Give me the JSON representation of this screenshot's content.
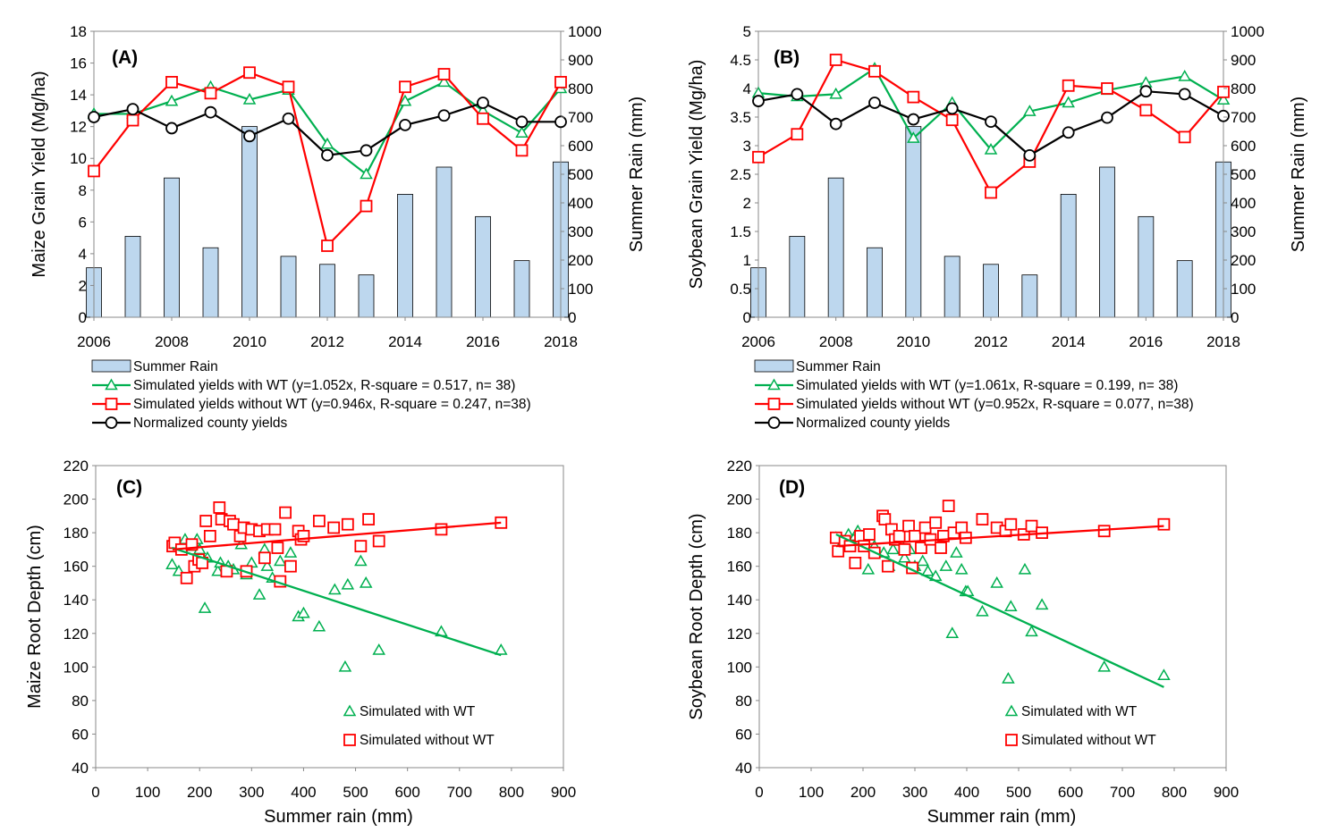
{
  "chart_data": [
    {
      "type": "bar+line",
      "panel_label": "(A)",
      "x_ticks": [
        "2006",
        "2008",
        "2010",
        "2012",
        "2014",
        "2016",
        "2018"
      ],
      "ylabel": "Maize Grain Yield (Mg/ha)",
      "y2label": "Summer Rain (mm)",
      "ylim": [
        0,
        18
      ],
      "y_ticks": [
        0,
        2,
        4,
        6,
        8,
        10,
        12,
        14,
        16,
        18
      ],
      "y2lim": [
        0,
        1000
      ],
      "y2_ticks": [
        0,
        100,
        200,
        300,
        400,
        500,
        600,
        700,
        800,
        900,
        1000
      ],
      "x": [
        2006,
        2007,
        2008,
        2009,
        2010,
        2011,
        2012,
        2013,
        2014,
        2015,
        2016,
        2017,
        2018
      ],
      "bars": {
        "name": "Summer Rain",
        "axis": "y2",
        "color": "#BDD7EE",
        "values": [
          173,
          283,
          487,
          243,
          667,
          213,
          185,
          148,
          430,
          525,
          352,
          198,
          543
        ]
      },
      "series": [
        {
          "name": "Simulated yields with WT (y=1.052x, R-square = 0.517, n= 38)",
          "color": "#00B050",
          "marker": "triangle",
          "values": [
            12.8,
            12.8,
            13.6,
            14.5,
            13.7,
            14.3,
            10.9,
            9.0,
            13.6,
            14.8,
            13.0,
            11.6,
            14.4
          ]
        },
        {
          "name": "Simulated yields without WT (y=0.946x, R-square = 0.247, n=38)",
          "color": "#FF0000",
          "marker": "square",
          "values": [
            9.2,
            12.4,
            14.8,
            14.1,
            15.4,
            14.5,
            4.5,
            7.0,
            14.5,
            15.3,
            12.5,
            10.5,
            14.8
          ]
        },
        {
          "name": "Normalized county yields",
          "color": "#000000",
          "marker": "circle",
          "values": [
            12.6,
            13.1,
            11.9,
            12.9,
            11.4,
            12.5,
            10.2,
            10.5,
            12.1,
            12.7,
            13.5,
            12.3,
            12.3
          ]
        }
      ],
      "legend": "bottom"
    },
    {
      "type": "bar+line",
      "panel_label": "(B)",
      "x_ticks": [
        "2006",
        "2008",
        "2010",
        "2012",
        "2014",
        "2016",
        "2018"
      ],
      "ylabel": "Soybean Grain Yield (Mg/ha)",
      "y2label": "Summer Rain (mm)",
      "ylim": [
        0,
        5
      ],
      "y_ticks": [
        "0",
        "0.5",
        "1",
        "1.5",
        "2",
        "2.5",
        "3",
        "3.5",
        "4",
        "4.5",
        "5"
      ],
      "y2lim": [
        0,
        1000
      ],
      "y2_ticks": [
        0,
        100,
        200,
        300,
        400,
        500,
        600,
        700,
        800,
        900,
        1000
      ],
      "x": [
        2006,
        2007,
        2008,
        2009,
        2010,
        2011,
        2012,
        2013,
        2014,
        2015,
        2016,
        2017,
        2018
      ],
      "bars": {
        "name": "Summer Rain",
        "axis": "y2",
        "color": "#BDD7EE",
        "values": [
          173,
          283,
          487,
          243,
          667,
          213,
          185,
          148,
          430,
          525,
          352,
          198,
          543
        ]
      },
      "series": [
        {
          "name": "Simulated yields with WT (y=1.061x, R-square = 0.199, n= 38)",
          "color": "#00B050",
          "marker": "triangle",
          "values": [
            3.92,
            3.86,
            3.9,
            4.35,
            3.13,
            3.75,
            2.93,
            3.6,
            3.75,
            3.97,
            4.1,
            4.21,
            3.8
          ]
        },
        {
          "name": "Simulated yields without WT (y=0.952x, R-square = 0.077, n=38)",
          "color": "#FF0000",
          "marker": "square",
          "values": [
            2.8,
            3.2,
            4.5,
            4.3,
            3.85,
            3.45,
            2.18,
            2.72,
            4.05,
            4.0,
            3.62,
            3.15,
            3.94
          ]
        },
        {
          "name": "Normalized county yields",
          "color": "#000000",
          "marker": "circle",
          "values": [
            3.78,
            3.9,
            3.38,
            3.75,
            3.46,
            3.65,
            3.42,
            2.83,
            3.23,
            3.49,
            3.95,
            3.9,
            3.52
          ]
        }
      ],
      "legend": "bottom"
    },
    {
      "type": "scatter",
      "panel_label": "(C)",
      "xlabel": "Summer rain (mm)",
      "ylabel": "Maize Root Depth (cm)",
      "xlim": [
        0,
        900
      ],
      "x_ticks": [
        0,
        100,
        200,
        300,
        400,
        500,
        600,
        700,
        800,
        900
      ],
      "ylim": [
        40,
        220
      ],
      "y_ticks": [
        40,
        60,
        80,
        100,
        120,
        140,
        160,
        180,
        200,
        220
      ],
      "series": [
        {
          "name": "Simulated  with WT",
          "color": "#00B050",
          "marker": "triangle",
          "points": [
            [
              147,
              161
            ],
            [
              160,
              157
            ],
            [
              172,
              176
            ],
            [
              185,
              172
            ],
            [
              195,
              176
            ],
            [
              200,
              170
            ],
            [
              210,
              135
            ],
            [
              215,
              165
            ],
            [
              235,
              157
            ],
            [
              240,
              162
            ],
            [
              255,
              160
            ],
            [
              265,
              158
            ],
            [
              280,
              173
            ],
            [
              290,
              155
            ],
            [
              300,
              162
            ],
            [
              315,
              143
            ],
            [
              325,
              170
            ],
            [
              330,
              160
            ],
            [
              340,
              153
            ],
            [
              355,
              163
            ],
            [
              375,
              168
            ],
            [
              390,
              130
            ],
            [
              400,
              132
            ],
            [
              430,
              124
            ],
            [
              460,
              146
            ],
            [
              480,
              100
            ],
            [
              485,
              149
            ],
            [
              510,
              163
            ],
            [
              520,
              150
            ],
            [
              545,
              110
            ],
            [
              665,
              121
            ],
            [
              780,
              110
            ]
          ],
          "trend": {
            "x": [
              147,
              780
            ],
            "y": [
              171,
              107
            ]
          }
        },
        {
          "name": "Simulated  without WT",
          "color": "#FF0000",
          "marker": "square",
          "points": [
            [
              148,
              172
            ],
            [
              152,
              174
            ],
            [
              165,
              170
            ],
            [
              175,
              153
            ],
            [
              185,
              173
            ],
            [
              190,
              160
            ],
            [
              198,
              164
            ],
            [
              205,
              162
            ],
            [
              212,
              187
            ],
            [
              220,
              178
            ],
            [
              238,
              195
            ],
            [
              242,
              188
            ],
            [
              252,
              157
            ],
            [
              258,
              187
            ],
            [
              265,
              185
            ],
            [
              278,
              178
            ],
            [
              285,
              183
            ],
            [
              290,
              157
            ],
            [
              300,
              182
            ],
            [
              315,
              181
            ],
            [
              325,
              165
            ],
            [
              330,
              182
            ],
            [
              345,
              182
            ],
            [
              350,
              171
            ],
            [
              355,
              151
            ],
            [
              365,
              192
            ],
            [
              375,
              160
            ],
            [
              390,
              181
            ],
            [
              395,
              176
            ],
            [
              400,
              178
            ],
            [
              430,
              187
            ],
            [
              458,
              183
            ],
            [
              485,
              185
            ],
            [
              510,
              172
            ],
            [
              525,
              188
            ],
            [
              545,
              175
            ],
            [
              665,
              182
            ],
            [
              780,
              186
            ]
          ],
          "trend": {
            "x": [
              148,
              780
            ],
            "y": [
              170,
              186
            ]
          }
        }
      ],
      "legend": "bottom-center"
    },
    {
      "type": "scatter",
      "panel_label": "(D)",
      "xlabel": "Summer rain (mm)",
      "ylabel": "Soybean Root Depth (cm)",
      "xlim": [
        0,
        900
      ],
      "x_ticks": [
        0,
        100,
        200,
        300,
        400,
        500,
        600,
        700,
        800,
        900
      ],
      "ylim": [
        40,
        220
      ],
      "y_ticks": [
        40,
        60,
        80,
        100,
        120,
        140,
        160,
        180,
        200,
        220
      ],
      "series": [
        {
          "name": "Simulated  with WT",
          "color": "#00B050",
          "marker": "triangle",
          "points": [
            [
              148,
              177
            ],
            [
              160,
              174
            ],
            [
              172,
              179
            ],
            [
              185,
              178
            ],
            [
              190,
              181
            ],
            [
              200,
              175
            ],
            [
              210,
              158
            ],
            [
              222,
              172
            ],
            [
              240,
              168
            ],
            [
              250,
              160
            ],
            [
              258,
              170
            ],
            [
              270,
              175
            ],
            [
              280,
              165
            ],
            [
              290,
              170
            ],
            [
              300,
              160
            ],
            [
              315,
              163
            ],
            [
              325,
              157
            ],
            [
              340,
              154
            ],
            [
              350,
              172
            ],
            [
              360,
              160
            ],
            [
              372,
              120
            ],
            [
              380,
              168
            ],
            [
              390,
              158
            ],
            [
              398,
              145
            ],
            [
              402,
              145
            ],
            [
              430,
              133
            ],
            [
              458,
              150
            ],
            [
              480,
              93
            ],
            [
              485,
              136
            ],
            [
              512,
              158
            ],
            [
              525,
              121
            ],
            [
              545,
              137
            ],
            [
              665,
              100
            ],
            [
              780,
              95
            ]
          ],
          "trend": {
            "x": [
              148,
              780
            ],
            "y": [
              179,
              88
            ]
          }
        },
        {
          "name": "Simulated  without WT",
          "color": "#FF0000",
          "marker": "square",
          "points": [
            [
              148,
              177
            ],
            [
              152,
              169
            ],
            [
              165,
              175
            ],
            [
              175,
              172
            ],
            [
              185,
              162
            ],
            [
              195,
              178
            ],
            [
              202,
              172
            ],
            [
              212,
              179
            ],
            [
              222,
              168
            ],
            [
              238,
              190
            ],
            [
              242,
              188
            ],
            [
              248,
              160
            ],
            [
              255,
              182
            ],
            [
              262,
              176
            ],
            [
              270,
              178
            ],
            [
              280,
              170
            ],
            [
              288,
              184
            ],
            [
              295,
              159
            ],
            [
              300,
              178
            ],
            [
              312,
              171
            ],
            [
              320,
              183
            ],
            [
              330,
              176
            ],
            [
              340,
              186
            ],
            [
              350,
              171
            ],
            [
              355,
              178
            ],
            [
              365,
              196
            ],
            [
              375,
              180
            ],
            [
              390,
              183
            ],
            [
              398,
              177
            ],
            [
              430,
              188
            ],
            [
              458,
              183
            ],
            [
              475,
              181
            ],
            [
              485,
              185
            ],
            [
              510,
              179
            ],
            [
              525,
              184
            ],
            [
              545,
              180
            ],
            [
              665,
              181
            ],
            [
              780,
              185
            ]
          ],
          "trend": {
            "x": [
              148,
              780
            ],
            "y": [
              172,
              184
            ]
          }
        }
      ],
      "legend": "bottom-center"
    }
  ]
}
